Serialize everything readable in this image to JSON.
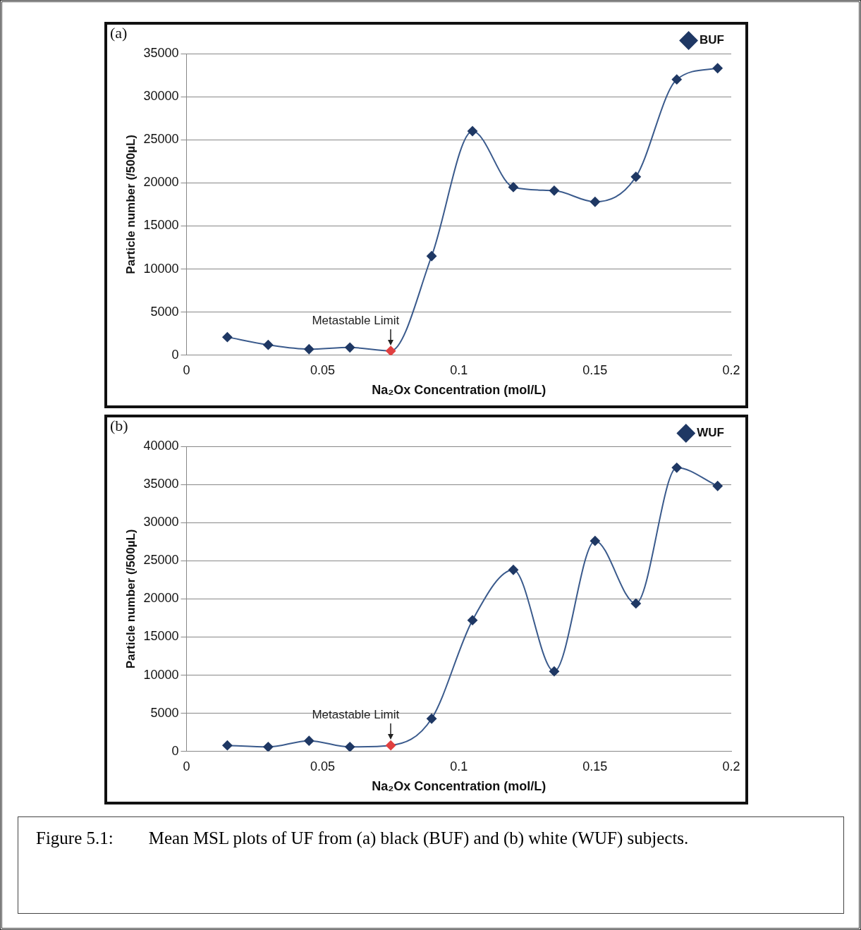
{
  "chart_data": [
    {
      "type": "line",
      "title": "(a)",
      "xlabel": "Na₂Ox Concentration (mol/L)",
      "ylabel": "Particle number (/500µL)",
      "x": [
        0.015,
        0.03,
        0.045,
        0.06,
        0.075,
        0.09,
        0.105,
        0.12,
        0.135,
        0.15,
        0.165,
        0.18,
        0.195
      ],
      "series": [
        {
          "name": "BUF",
          "color": "#3a5a8c",
          "colors": [
            "#1f3864",
            "#1f3864",
            "#1f3864",
            "#1f3864",
            "#e04040",
            "#1f3864",
            "#1f3864",
            "#1f3864",
            "#1f3864",
            "#1f3864",
            "#1f3864",
            "#1f3864",
            "#1f3864"
          ],
          "values": [
            2100,
            1200,
            700,
            900,
            500,
            11500,
            26000,
            19500,
            19100,
            17800,
            20700,
            32000,
            33300
          ]
        }
      ],
      "xlim": [
        0,
        0.2
      ],
      "xticks": [
        0,
        0.05,
        0.1,
        0.15,
        0.2
      ],
      "ylim": [
        0,
        35000
      ],
      "yticks": [
        0,
        5000,
        10000,
        15000,
        20000,
        25000,
        30000,
        35000
      ],
      "grid": "y",
      "legend": "top right",
      "marker": "diamond",
      "annotations": [
        {
          "text": "Metastable Limit",
          "x": 0.075,
          "y": 500
        }
      ]
    },
    {
      "type": "line",
      "title": "(b)",
      "xlabel": "Na₂Ox Concentration (mol/L)",
      "ylabel": "Particle number (/500µL)",
      "x": [
        0.015,
        0.03,
        0.045,
        0.06,
        0.075,
        0.09,
        0.105,
        0.12,
        0.135,
        0.15,
        0.165,
        0.18,
        0.195
      ],
      "series": [
        {
          "name": "WUF",
          "color": "#3a5a8c",
          "colors": [
            "#1f3864",
            "#1f3864",
            "#1f3864",
            "#1f3864",
            "#e04040",
            "#1f3864",
            "#1f3864",
            "#1f3864",
            "#1f3864",
            "#1f3864",
            "#1f3864",
            "#1f3864",
            "#1f3864"
          ],
          "values": [
            800,
            600,
            1400,
            600,
            800,
            4300,
            17200,
            23800,
            10500,
            27600,
            19400,
            37200,
            34800
          ]
        }
      ],
      "xlim": [
        0,
        0.2
      ],
      "xticks": [
        0,
        0.05,
        0.1,
        0.15,
        0.2
      ],
      "ylim": [
        0,
        40000
      ],
      "yticks": [
        0,
        5000,
        10000,
        15000,
        20000,
        25000,
        30000,
        35000,
        40000
      ],
      "grid": "y",
      "legend": "top right",
      "marker": "diamond",
      "annotations": [
        {
          "text": "Metastable Limit",
          "x": 0.075,
          "y": 800
        },
        "Figure 5.1:  Mean MSL plots of UF from (a) black (BUF) and (b) white (WUF) subjects."
      ]
    }
  ]
}
